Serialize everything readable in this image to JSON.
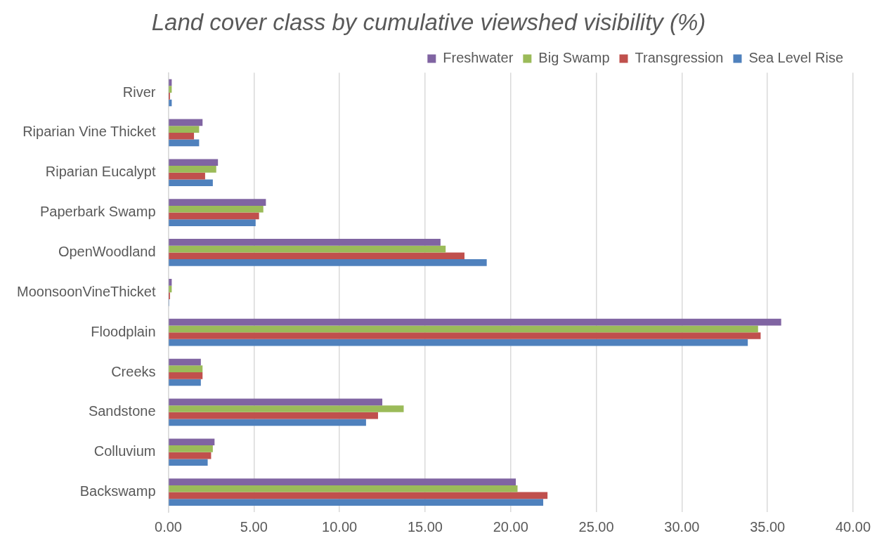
{
  "chart_data": {
    "type": "bar",
    "orientation": "horizontal",
    "title": "Land cover class by cumulative viewshed visibility (%)",
    "categories": [
      "River",
      "Riparian Vine Thicket",
      "Riparian Eucalypt",
      "Paperbark Swamp",
      "OpenWoodland",
      "MoonsoonVineThicket",
      "Floodplain",
      "Creeks",
      "Sandstone",
      "Colluvium",
      "Backswamp"
    ],
    "series": [
      {
        "name": "Freshwater",
        "color": "#8064a2",
        "values": [
          0.2,
          2.0,
          2.9,
          5.7,
          15.9,
          0.2,
          35.8,
          1.9,
          12.5,
          2.7,
          20.3
        ]
      },
      {
        "name": "Big Swamp",
        "color": "#9bbb59",
        "values": [
          0.2,
          1.8,
          2.8,
          5.55,
          16.2,
          0.2,
          34.45,
          2.0,
          13.75,
          2.6,
          20.4
        ]
      },
      {
        "name": "Transgression",
        "color": "#c0504d",
        "values": [
          0.1,
          1.5,
          2.15,
          5.3,
          17.3,
          0.1,
          34.6,
          2.0,
          12.25,
          2.5,
          22.15
        ]
      },
      {
        "name": "Sea Level Rise",
        "color": "#4f81bd",
        "values": [
          0.2,
          1.8,
          2.6,
          5.1,
          18.6,
          0.05,
          33.85,
          1.9,
          11.55,
          2.3,
          21.9
        ]
      }
    ],
    "xlim": [
      0,
      40
    ],
    "xticks": [
      {
        "value": 0,
        "label": "0.00"
      },
      {
        "value": 5,
        "label": "5.00"
      },
      {
        "value": 10,
        "label": "10.00"
      },
      {
        "value": 15,
        "label": "15.00"
      },
      {
        "value": 20,
        "label": "20.00"
      },
      {
        "value": 25,
        "label": "25.00"
      },
      {
        "value": 30,
        "label": "30.00"
      },
      {
        "value": 35,
        "label": "35.00"
      },
      {
        "value": 40,
        "label": "40.00"
      }
    ],
    "grid": "x",
    "legend": "top right"
  }
}
